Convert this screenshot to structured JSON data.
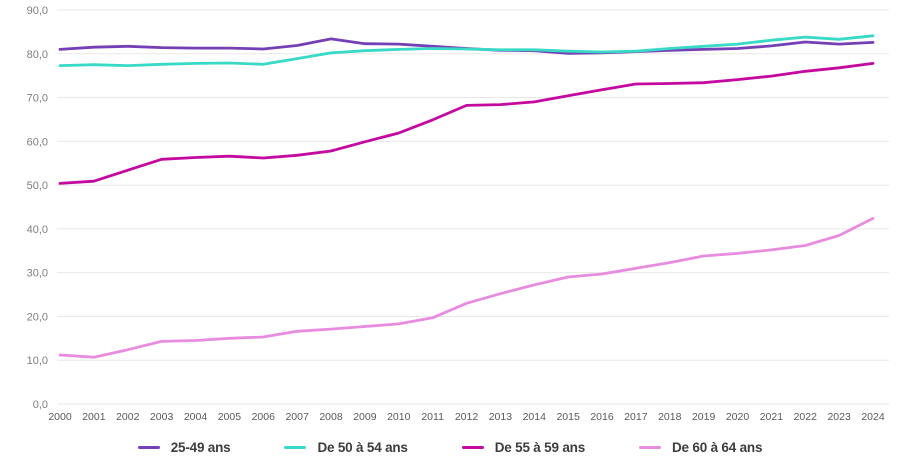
{
  "chart_data": {
    "type": "line",
    "title": "",
    "xlabel": "",
    "ylabel": "",
    "x": [
      2000,
      2001,
      2002,
      2003,
      2004,
      2005,
      2006,
      2007,
      2008,
      2009,
      2010,
      2011,
      2012,
      2013,
      2014,
      2015,
      2016,
      2017,
      2018,
      2019,
      2020,
      2021,
      2022,
      2023,
      2024
    ],
    "series": [
      {
        "name": "25-49 ans",
        "color": "#7540b5",
        "values": [
          81.0,
          81.5,
          81.7,
          81.4,
          81.3,
          81.3,
          81.1,
          81.9,
          83.4,
          82.3,
          82.2,
          81.7,
          81.2,
          80.8,
          80.7,
          80.1,
          80.2,
          80.5,
          80.8,
          81.0,
          81.2,
          81.8,
          82.7,
          82.2,
          82.6
        ]
      },
      {
        "name": "De 50 à 54 ans",
        "color": "#38d9c6",
        "values": [
          77.3,
          77.5,
          77.3,
          77.6,
          77.8,
          77.9,
          77.6,
          78.9,
          80.2,
          80.7,
          81.0,
          81.2,
          81.1,
          80.9,
          80.9,
          80.6,
          80.4,
          80.6,
          81.2,
          81.7,
          82.2,
          83.1,
          83.8,
          83.3,
          84.1
        ]
      },
      {
        "name": "De 55 à 59 ans",
        "color": "#c409a0",
        "values": [
          50.4,
          50.9,
          53.4,
          55.9,
          56.3,
          56.6,
          56.2,
          56.8,
          57.8,
          59.9,
          61.9,
          64.9,
          68.2,
          68.4,
          69.0,
          70.4,
          71.8,
          73.1,
          73.2,
          73.4,
          74.1,
          74.9,
          76.0,
          76.8,
          77.8
        ]
      },
      {
        "name": "De 60 à 64 ans",
        "color": "#e88ce0",
        "values": [
          11.2,
          10.7,
          12.4,
          14.3,
          14.5,
          15.0,
          15.3,
          16.6,
          17.1,
          17.7,
          18.3,
          19.7,
          23.0,
          25.2,
          27.2,
          29.0,
          29.7,
          31.0,
          32.3,
          33.8,
          34.4,
          35.2,
          36.2,
          38.5,
          42.4
        ]
      }
    ],
    "ylim": [
      0,
      90
    ],
    "ytick_values": [
      0,
      10,
      20,
      30,
      40,
      50,
      60,
      70,
      80,
      90
    ],
    "ytick_labels": [
      "0,0",
      "10,0",
      "20,0",
      "30,0",
      "40,0",
      "50,0",
      "60,0",
      "70,0",
      "80,0",
      "90,0"
    ],
    "grid": "horizontal",
    "legend_position": "bottom"
  },
  "colors": {
    "background": "#ffffff",
    "gridline": "#e8e8e8",
    "y_tick_label": "#7f7f7f",
    "x_tick_label": "#595959",
    "legend_text": "#3d3d3d"
  }
}
